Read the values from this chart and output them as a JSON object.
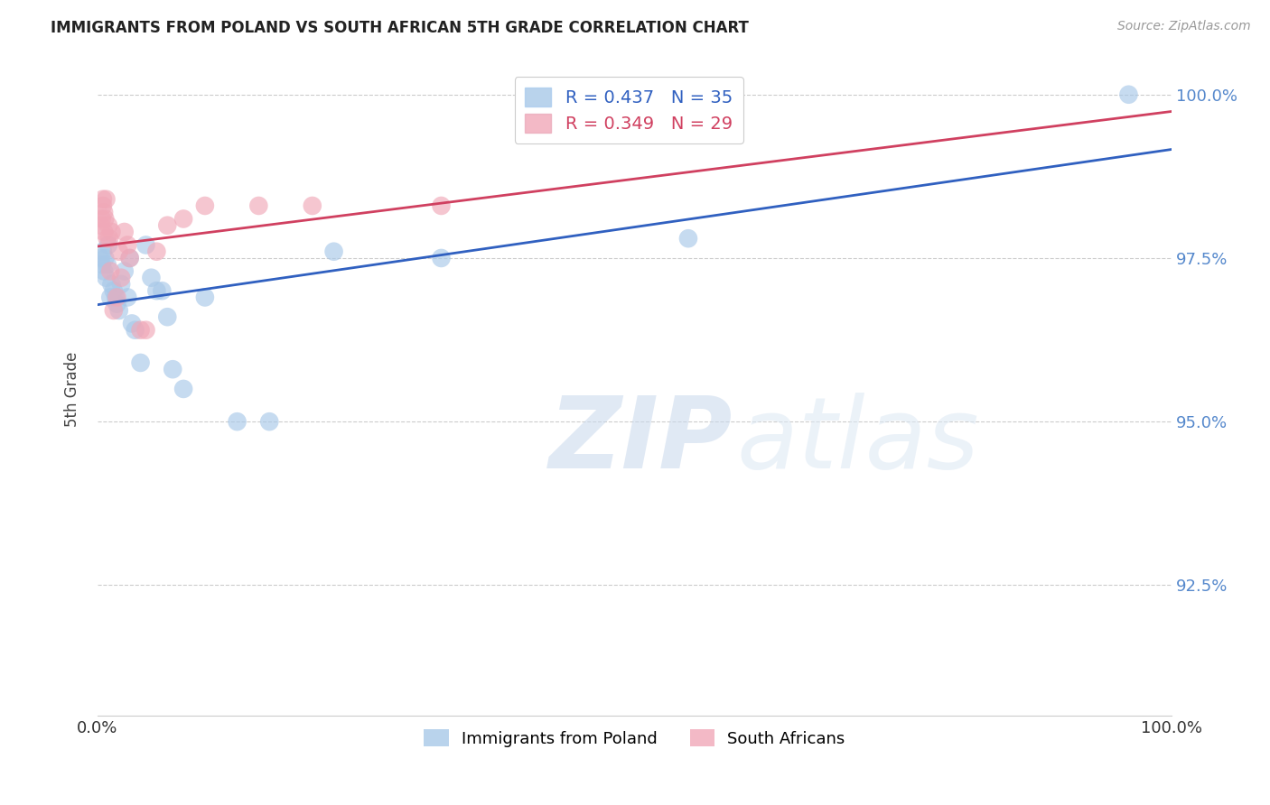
{
  "title": "IMMIGRANTS FROM POLAND VS SOUTH AFRICAN 5TH GRADE CORRELATION CHART",
  "source": "Source: ZipAtlas.com",
  "ylabel": "5th Grade",
  "xlim": [
    0.0,
    1.0
  ],
  "ylim": [
    0.905,
    1.005
  ],
  "yticks": [
    0.925,
    0.95,
    0.975,
    1.0
  ],
  "ytick_labels": [
    "92.5%",
    "95.0%",
    "97.5%",
    "100.0%"
  ],
  "xticks": [
    0.0,
    0.1,
    0.2,
    0.3,
    0.4,
    0.5,
    0.6,
    0.7,
    0.8,
    0.9,
    1.0
  ],
  "blue_R": 0.437,
  "blue_N": 35,
  "pink_R": 0.349,
  "pink_N": 29,
  "blue_color": "#a8c8e8",
  "pink_color": "#f0a8b8",
  "blue_line_color": "#3060c0",
  "pink_line_color": "#d04060",
  "legend_blue_label": "Immigrants from Poland",
  "legend_pink_label": "South Africans",
  "blue_x": [
    0.003,
    0.004,
    0.005,
    0.006,
    0.007,
    0.008,
    0.009,
    0.01,
    0.012,
    0.013,
    0.015,
    0.017,
    0.018,
    0.02,
    0.022,
    0.025,
    0.028,
    0.03,
    0.032,
    0.035,
    0.04,
    0.045,
    0.05,
    0.055,
    0.06,
    0.065,
    0.07,
    0.08,
    0.1,
    0.13,
    0.16,
    0.22,
    0.32,
    0.55,
    0.96
  ],
  "blue_y": [
    0.975,
    0.974,
    0.976,
    0.973,
    0.975,
    0.972,
    0.974,
    0.977,
    0.969,
    0.971,
    0.97,
    0.969,
    0.968,
    0.967,
    0.971,
    0.973,
    0.969,
    0.975,
    0.965,
    0.964,
    0.959,
    0.977,
    0.972,
    0.97,
    0.97,
    0.966,
    0.958,
    0.955,
    0.969,
    0.95,
    0.95,
    0.976,
    0.975,
    0.978,
    1.0
  ],
  "pink_x": [
    0.003,
    0.004,
    0.005,
    0.005,
    0.006,
    0.006,
    0.007,
    0.008,
    0.009,
    0.01,
    0.011,
    0.012,
    0.013,
    0.015,
    0.018,
    0.02,
    0.022,
    0.025,
    0.028,
    0.03,
    0.04,
    0.045,
    0.055,
    0.065,
    0.08,
    0.1,
    0.15,
    0.2,
    0.32
  ],
  "pink_y": [
    0.98,
    0.981,
    0.983,
    0.984,
    0.982,
    0.979,
    0.981,
    0.984,
    0.978,
    0.98,
    0.978,
    0.973,
    0.979,
    0.967,
    0.969,
    0.976,
    0.972,
    0.979,
    0.977,
    0.975,
    0.964,
    0.964,
    0.976,
    0.98,
    0.981,
    0.983,
    0.983,
    0.983,
    0.983
  ],
  "watermark_zip": "ZIP",
  "watermark_atlas": "atlas",
  "background_color": "#ffffff",
  "grid_color": "#cccccc",
  "ytick_color": "#5588cc",
  "xtick_color": "#333333"
}
